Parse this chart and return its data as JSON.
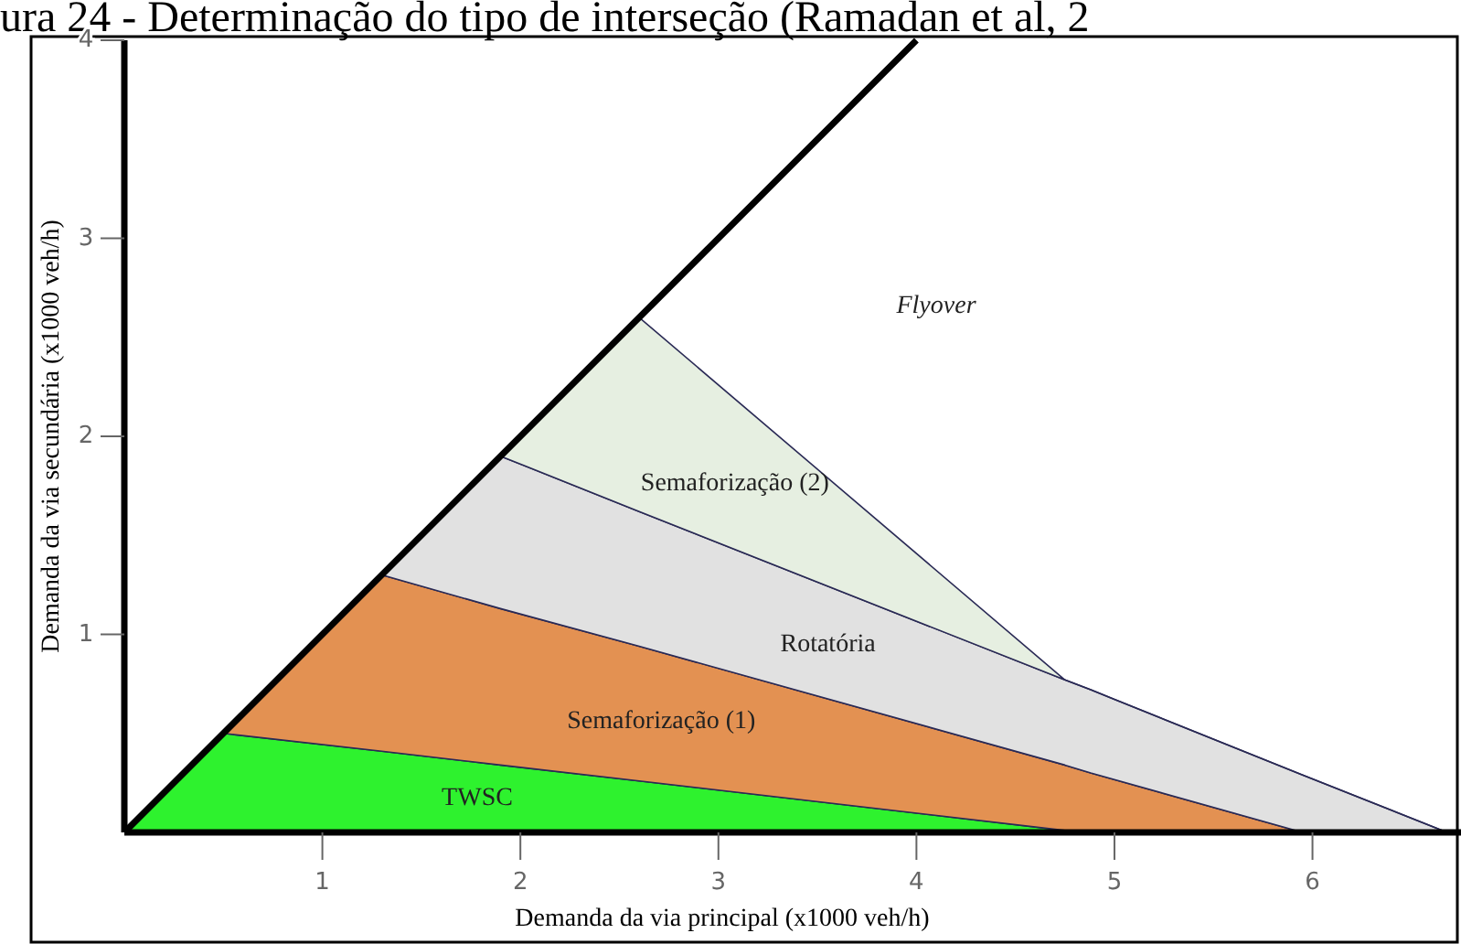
{
  "chart_data": {
    "type": "area",
    "stacked": true,
    "title": "ura 24 - Determinação do tipo de interseção (Ramadan et al, 2",
    "xlabel": "Demanda da via principal (x1000 veh/h)",
    "ylabel": "Demanda da via secundária (x1000 veh/h)",
    "xlim": [
      0,
      6.75
    ],
    "ylim": [
      0,
      4
    ],
    "xticks": [
      1,
      2,
      3,
      4,
      5,
      6
    ],
    "yticks": [
      1,
      2,
      3,
      4
    ],
    "grid": false,
    "legend": false,
    "x": [
      0,
      0.5,
      1.3,
      1.9,
      2.6,
      4.75,
      4.88,
      5.95,
      6.68
    ],
    "annotations": [
      "Flyover"
    ],
    "series": [
      {
        "name": "TWSC",
        "color": "#2ef22e",
        "values": [
          0,
          0.5,
          0.41,
          0.34,
          0.26,
          0.01,
          0,
          0,
          0
        ]
      },
      {
        "name": "Semaforização (1)",
        "color": "#e39152",
        "values": [
          0,
          0,
          0.89,
          0.79,
          0.68,
          0.33,
          0.3,
          0,
          0
        ]
      },
      {
        "name": "Rotatória",
        "color": "#e1e1e1",
        "values": [
          0,
          0,
          0,
          0.77,
          0.68,
          0.43,
          0.42,
          0.29,
          0
        ]
      },
      {
        "name": "Semaforização (2)",
        "color": "#e6efe1",
        "values": [
          0,
          0,
          0,
          0,
          0.98,
          0,
          0,
          0,
          0
        ]
      },
      {
        "type": "line",
        "color": "#000000",
        "x": [
          0,
          4
        ],
        "values": [
          0,
          4
        ]
      }
    ]
  }
}
